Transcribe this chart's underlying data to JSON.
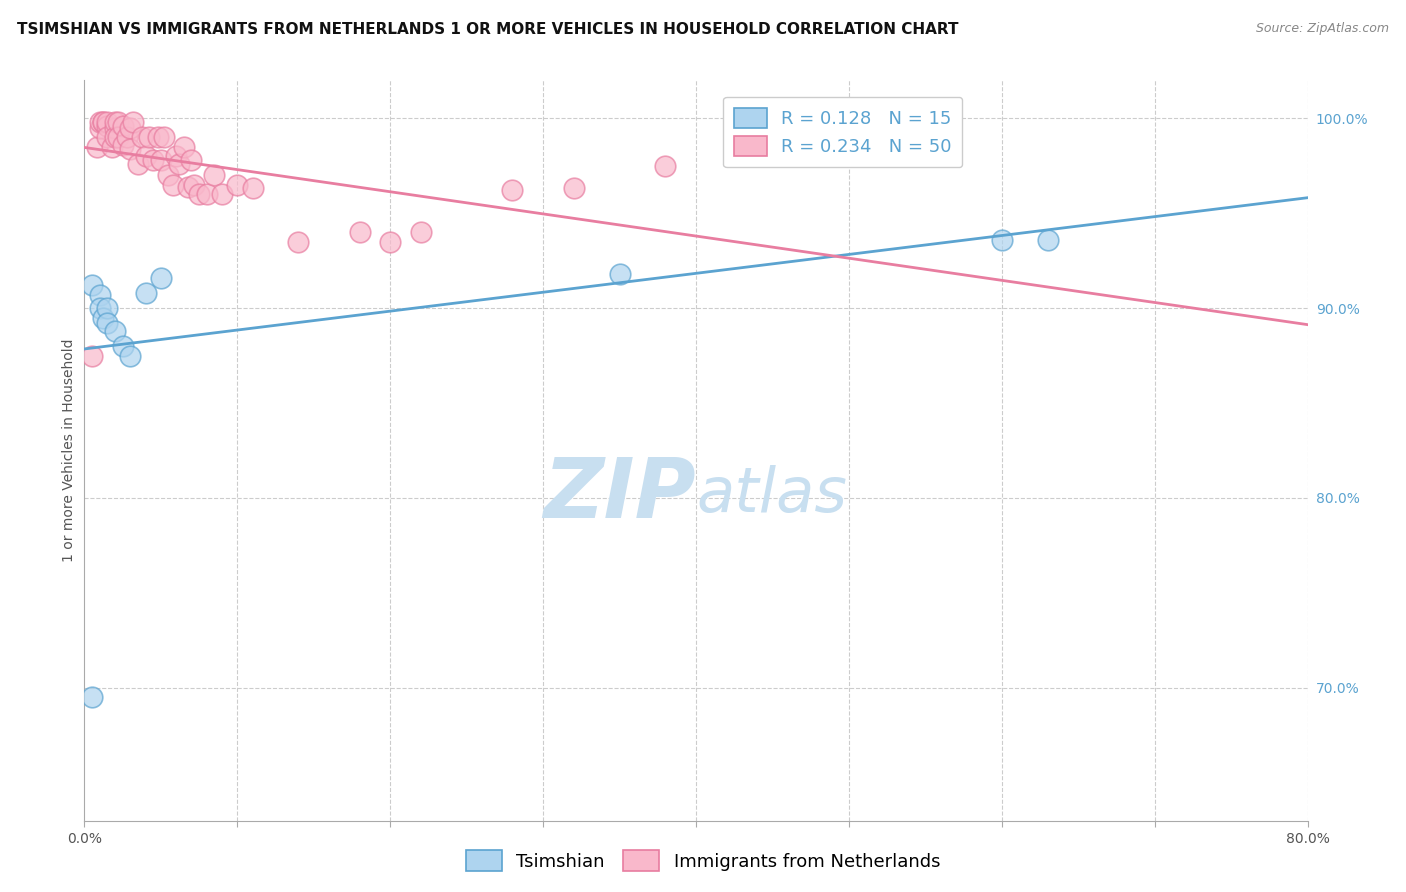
{
  "title": "TSIMSHIAN VS IMMIGRANTS FROM NETHERLANDS 1 OR MORE VEHICLES IN HOUSEHOLD CORRELATION CHART",
  "source": "Source: ZipAtlas.com",
  "ylabel": "1 or more Vehicles in Household",
  "x_min": 0.0,
  "x_max": 0.8,
  "y_min": 0.63,
  "y_max": 1.02,
  "x_ticks": [
    0.0,
    0.1,
    0.2,
    0.3,
    0.4,
    0.5,
    0.6,
    0.7,
    0.8
  ],
  "x_tick_labels": [
    "0.0%",
    "",
    "",
    "",
    "",
    "",
    "",
    "",
    "80.0%"
  ],
  "y_ticks_right": [
    0.7,
    0.8,
    0.9,
    1.0
  ],
  "y_tick_labels_right": [
    "70.0%",
    "80.0%",
    "90.0%",
    "100.0%"
  ],
  "legend_labels": [
    "Tsimshian",
    "Immigrants from Netherlands"
  ],
  "R_blue": 0.128,
  "N_blue": 15,
  "R_pink": 0.234,
  "N_pink": 50,
  "blue_color": "#aed4ef",
  "blue_edge_color": "#5ba3d0",
  "blue_line_color": "#5ba3d0",
  "pink_color": "#f9b8cb",
  "pink_edge_color": "#e87da0",
  "pink_line_color": "#e87da0",
  "watermark_zip": "ZIP",
  "watermark_atlas": "atlas",
  "watermark_color_zip": "#c8dff0",
  "watermark_color_atlas": "#c8dff0",
  "grid_color": "#cccccc",
  "background_color": "#ffffff",
  "blue_scatter_x": [
    0.005,
    0.01,
    0.01,
    0.012,
    0.015,
    0.015,
    0.02,
    0.025,
    0.03,
    0.04,
    0.05,
    0.6,
    0.63,
    0.35,
    0.005
  ],
  "blue_scatter_y": [
    0.912,
    0.907,
    0.9,
    0.895,
    0.9,
    0.892,
    0.888,
    0.88,
    0.875,
    0.908,
    0.916,
    0.936,
    0.936,
    0.918,
    0.695
  ],
  "pink_scatter_x": [
    0.005,
    0.008,
    0.01,
    0.01,
    0.012,
    0.012,
    0.015,
    0.015,
    0.015,
    0.018,
    0.02,
    0.02,
    0.02,
    0.022,
    0.022,
    0.025,
    0.025,
    0.028,
    0.03,
    0.03,
    0.032,
    0.035,
    0.038,
    0.04,
    0.042,
    0.045,
    0.048,
    0.05,
    0.052,
    0.055,
    0.058,
    0.06,
    0.062,
    0.065,
    0.068,
    0.07,
    0.072,
    0.075,
    0.08,
    0.085,
    0.09,
    0.1,
    0.11,
    0.14,
    0.18,
    0.2,
    0.22,
    0.28,
    0.32,
    0.38
  ],
  "pink_scatter_y": [
    0.875,
    0.985,
    0.995,
    0.998,
    0.998,
    0.998,
    0.996,
    0.998,
    0.99,
    0.985,
    0.995,
    0.998,
    0.99,
    0.998,
    0.99,
    0.996,
    0.986,
    0.99,
    0.995,
    0.984,
    0.998,
    0.976,
    0.99,
    0.98,
    0.99,
    0.978,
    0.99,
    0.978,
    0.99,
    0.97,
    0.965,
    0.98,
    0.976,
    0.985,
    0.964,
    0.978,
    0.965,
    0.96,
    0.96,
    0.97,
    0.96,
    0.965,
    0.963,
    0.935,
    0.94,
    0.935,
    0.94,
    0.962,
    0.963,
    0.975
  ],
  "title_fontsize": 11,
  "axis_label_fontsize": 10,
  "tick_fontsize": 10,
  "legend_fontsize": 13,
  "watermark_fontsize": 60
}
